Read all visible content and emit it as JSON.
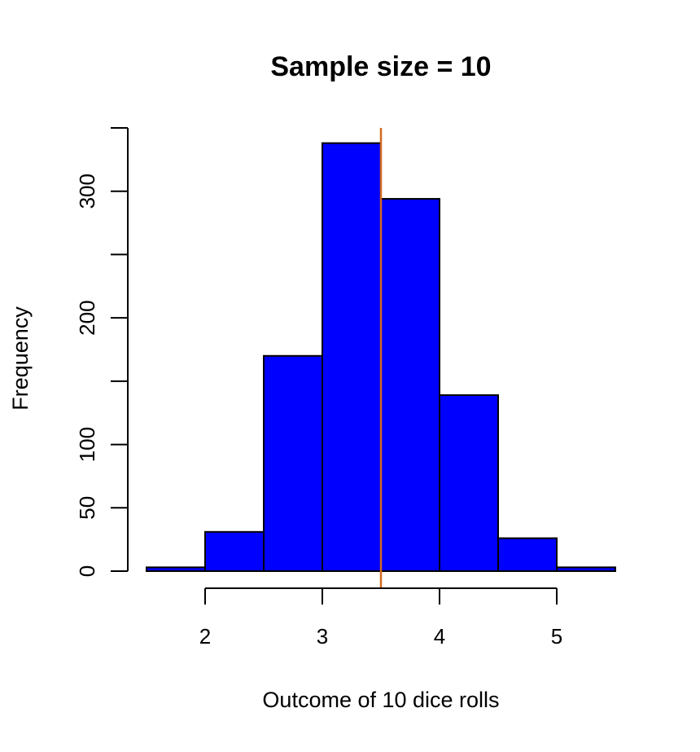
{
  "chart_data": {
    "type": "histogram",
    "title": "Sample size = 10",
    "xlabel": "Outcome of 10 dice rolls",
    "ylabel": "Frequency",
    "bin_edges": [
      1.5,
      2.0,
      2.5,
      3.0,
      3.5,
      4.0,
      4.5,
      5.0,
      5.5
    ],
    "values": [
      3,
      31,
      170,
      338,
      294,
      139,
      26,
      3
    ],
    "x_ticks": [
      "2",
      "3",
      "4",
      "5"
    ],
    "y_ticks": [
      "0",
      "50",
      "100",
      "200",
      "300"
    ],
    "xlim": [
      1.5,
      5.5
    ],
    "ylim": [
      0,
      350
    ],
    "bar_color": "#0000ff",
    "bar_edge_color": "#000000",
    "mean_line": {
      "x": 3.5,
      "color": "#d2691e"
    },
    "grid": false,
    "legend": "none"
  }
}
